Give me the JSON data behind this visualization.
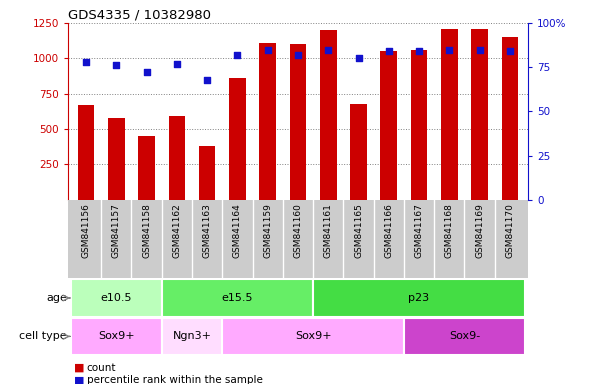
{
  "title": "GDS4335 / 10382980",
  "samples": [
    "GSM841156",
    "GSM841157",
    "GSM841158",
    "GSM841162",
    "GSM841163",
    "GSM841164",
    "GSM841159",
    "GSM841160",
    "GSM841161",
    "GSM841165",
    "GSM841166",
    "GSM841167",
    "GSM841168",
    "GSM841169",
    "GSM841170"
  ],
  "counts": [
    670,
    580,
    450,
    590,
    380,
    860,
    1110,
    1100,
    1200,
    680,
    1050,
    1060,
    1210,
    1210,
    1150
  ],
  "percentiles": [
    78,
    76,
    72,
    77,
    68,
    82,
    85,
    82,
    85,
    80,
    84,
    84,
    85,
    85,
    84
  ],
  "left_ylim": [
    0,
    1250
  ],
  "left_yticks": [
    250,
    500,
    750,
    1000,
    1250
  ],
  "right_ylim": [
    0,
    100
  ],
  "right_yticks": [
    0,
    25,
    50,
    75,
    100
  ],
  "right_yticklabels": [
    "0",
    "25",
    "50",
    "75",
    "100%"
  ],
  "bar_color": "#cc0000",
  "dot_color": "#1111cc",
  "age_groups": [
    {
      "label": "e10.5",
      "start": 0,
      "end": 3,
      "color": "#bbffbb"
    },
    {
      "label": "e15.5",
      "start": 3,
      "end": 8,
      "color": "#66ee66"
    },
    {
      "label": "p23",
      "start": 8,
      "end": 15,
      "color": "#44dd44"
    }
  ],
  "cell_type_groups": [
    {
      "label": "Sox9+",
      "start": 0,
      "end": 3,
      "color": "#ffaaff"
    },
    {
      "label": "Ngn3+",
      "start": 3,
      "end": 5,
      "color": "#ffddff"
    },
    {
      "label": "Sox9+",
      "start": 5,
      "end": 11,
      "color": "#ffaaff"
    },
    {
      "label": "Sox9-",
      "start": 11,
      "end": 15,
      "color": "#cc44cc"
    }
  ],
  "legend_count_color": "#cc0000",
  "legend_percentile_color": "#1111cc",
  "tick_label_color_left": "#cc0000",
  "tick_label_color_right": "#1111cc",
  "bg_color": "#ffffff",
  "xticklabel_bg": "#cccccc",
  "spine_color_left": "#cc0000",
  "spine_color_right": "#1111cc"
}
